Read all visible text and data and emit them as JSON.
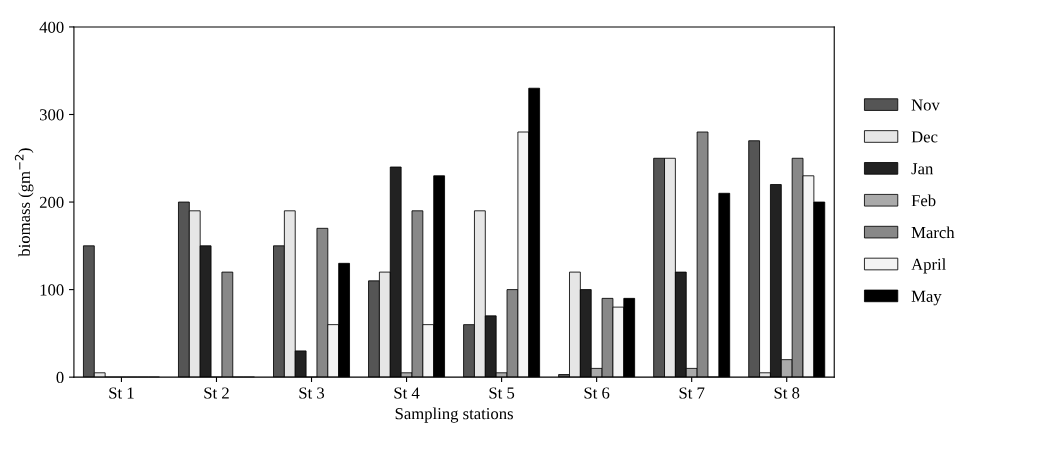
{
  "chart_data": {
    "type": "bar",
    "xlabel": "Sampling stations",
    "ylabel": "biomass (gm$^{−2}$)",
    "categories": [
      "St 1",
      "St 2",
      "St 3",
      "St 4",
      "St 5",
      "St 6",
      "St 7",
      "St 8"
    ],
    "series": [
      {
        "name": "Nov",
        "color": "#555555",
        "values": [
          150,
          200,
          150,
          110,
          60,
          3,
          250,
          270
        ]
      },
      {
        "name": "Dec",
        "color": "#e6e6e6",
        "values": [
          5,
          190,
          190,
          120,
          190,
          120,
          250,
          5
        ]
      },
      {
        "name": "Jan",
        "color": "#222222",
        "values": [
          0,
          150,
          30,
          240,
          70,
          100,
          120,
          220
        ]
      },
      {
        "name": "Feb",
        "color": "#aaaaaa",
        "values": [
          0,
          0,
          0,
          5,
          5,
          10,
          10,
          20
        ]
      },
      {
        "name": "March",
        "color": "#888888",
        "values": [
          0,
          120,
          170,
          190,
          100,
          90,
          280,
          250
        ]
      },
      {
        "name": "April",
        "color": "#f4f4f4",
        "values": [
          0,
          0,
          60,
          60,
          280,
          80,
          0,
          230
        ]
      },
      {
        "name": "May",
        "color": "#000000",
        "values": [
          0,
          0,
          130,
          230,
          330,
          90,
          210,
          200
        ]
      }
    ],
    "ylim": [
      0,
      400
    ],
    "yticks": [
      0,
      100,
      200,
      300,
      400
    ],
    "grid": false,
    "legend": "right"
  }
}
